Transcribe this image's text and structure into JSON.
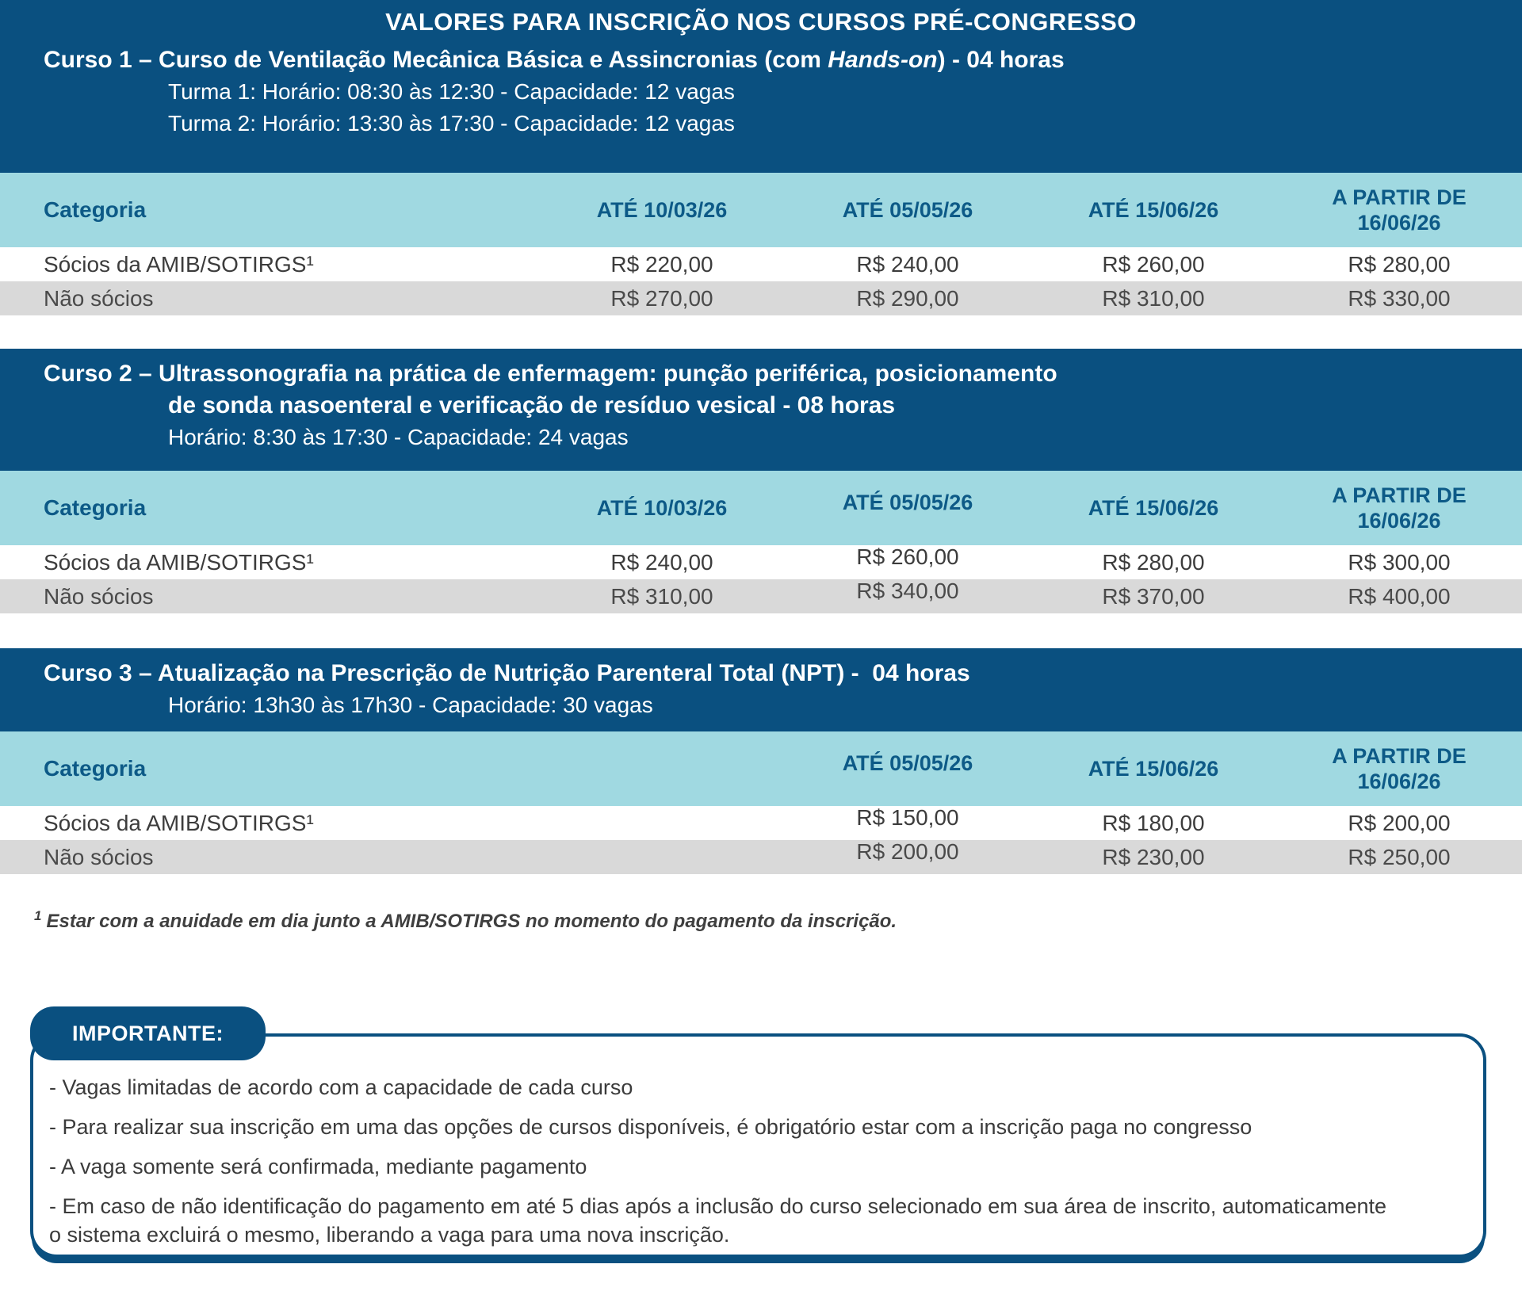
{
  "header": {
    "title": "VALORES PARA INSCRIÇÃO NOS CURSOS PRÉ-CONGRESSO"
  },
  "course1": {
    "title_pre": "Curso 1 – Curso de Ventilação Mecânica Básica e Assincronias (com ",
    "title_italic": "Hands-on",
    "title_post": ") - 04 horas",
    "turma1": "Turma 1: Horário: 08:30 às 12:30 - Capacidade: 12 vagas",
    "turma2": "Turma 2: Horário: 13:30 às 17:30 - Capacidade: 12 vagas"
  },
  "course2": {
    "title_line1": "Curso 2 – Ultrassonografia na prática de enfermagem: punção periférica, posicionamento",
    "title_line2": "de sonda nasoenteral e verificação de resíduo vesical - 08 horas",
    "schedule": "Horário: 8:30 às 17:30 - Capacidade: 24 vagas"
  },
  "course3": {
    "title": "Curso 3 – Atualização na Prescrição de Nutrição Parenteral Total (NPT) -  04 horas",
    "schedule": "Horário: 13h30 às 17h30 - Capacidade: 30 vagas"
  },
  "table1": {
    "col_category": "Categoria",
    "col_date1": "ATÉ 10/03/26",
    "col_date2": "ATÉ 05/05/26",
    "col_date3": "ATÉ 15/06/26",
    "col_date4_line1": "A PARTIR DE",
    "col_date4_line2": "16/06/26",
    "rows": [
      {
        "category": "Sócios da AMIB/SOTIRGS¹",
        "p1": "R$ 220,00",
        "p2": "R$ 240,00",
        "p3": "R$ 260,00",
        "p4": "R$ 280,00"
      },
      {
        "category": "Não sócios",
        "p1": "R$ 270,00",
        "p2": "R$ 290,00",
        "p3": "R$ 310,00",
        "p4": "R$ 330,00"
      }
    ]
  },
  "table2": {
    "col_category": "Categoria",
    "col_date1": "ATÉ 10/03/26",
    "col_date2": "ATÉ 05/05/26",
    "col_date3": "ATÉ 15/06/26",
    "col_date4_line1": "A PARTIR DE",
    "col_date4_line2": "16/06/26",
    "rows": [
      {
        "category": "Sócios da AMIB/SOTIRGS¹",
        "p1": "R$ 240,00",
        "p2": "R$ 260,00",
        "p3": "R$ 280,00",
        "p4": "R$ 300,00"
      },
      {
        "category": "Não sócios",
        "p1": "R$ 310,00",
        "p2": "R$ 340,00",
        "p3": "R$ 370,00",
        "p4": "R$ 400,00"
      }
    ]
  },
  "table3": {
    "col_category": "Categoria",
    "col_date2": "ATÉ 05/05/26",
    "col_date3": "ATÉ 15/06/26",
    "col_date4_line1": "A PARTIR DE",
    "col_date4_line2": "16/06/26",
    "rows": [
      {
        "category": "Sócios da AMIB/SOTIRGS¹",
        "p2": "R$ 150,00",
        "p3": "R$ 180,00",
        "p4": "R$ 200,00"
      },
      {
        "category": "Não sócios",
        "p2": "R$ 200,00",
        "p3": "R$ 230,00",
        "p4": "R$ 250,00"
      }
    ]
  },
  "footnote": {
    "marker": "1",
    "text": "Estar com a anuidade em dia junto a AMIB/SOTIRGS no momento do pagamento da inscrição."
  },
  "important": {
    "label": "IMPORTANTE:",
    "items": [
      "- Vagas limitadas de acordo com a capacidade de cada curso",
      "- Para realizar sua inscrição em uma das opções de cursos disponíveis, é obrigatório estar com a inscrição paga no congresso",
      "- A vaga somente será confirmada, mediante pagamento",
      "- Em caso de não identificação do pagamento em até 5 dias após a inclusão do curso selecionado em sua área de inscrito, automaticamente o sistema excluirá o mesmo, liberando a vaga para uma nova inscrição."
    ]
  },
  "colors": {
    "dark_blue": "#0A5080",
    "light_blue": "#A0D9E1",
    "header_text": "#0D5A87",
    "row_gray": "#D9D9D9"
  }
}
